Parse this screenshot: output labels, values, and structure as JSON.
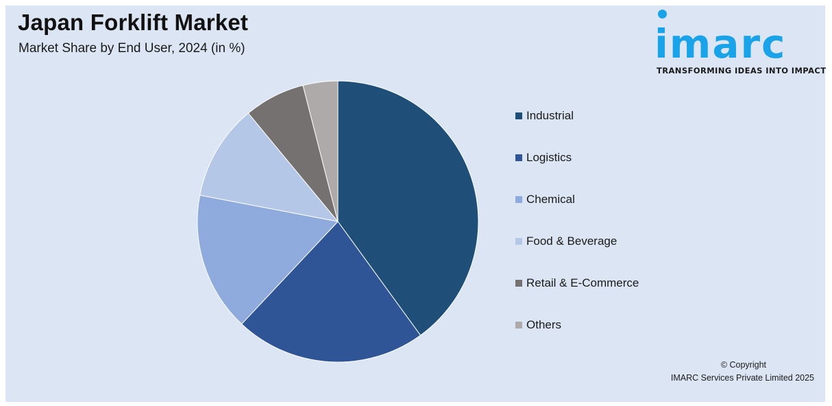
{
  "header": {
    "title": "Japan Forklift Market",
    "subtitle": "Market Share by End User, 2024 (in %)"
  },
  "logo": {
    "name": "imarc",
    "tagline": "TRANSFORMING IDEAS INTO IMPACT",
    "color": "#1aa3e8"
  },
  "chart_data": {
    "type": "pie",
    "title": "Japan Forklift Market",
    "subtitle": "Market Share by End User, 2024 (in %)",
    "legend_position": "right",
    "slices": [
      {
        "label": "Industrial",
        "value": 40,
        "color": "#1f4e79"
      },
      {
        "label": "Logistics",
        "value": 22,
        "color": "#2f5597"
      },
      {
        "label": "Chemical",
        "value": 16,
        "color": "#8faadc"
      },
      {
        "label": "Food & Beverage",
        "value": 11,
        "color": "#b4c7e7"
      },
      {
        "label": "Retail & E-Commerce",
        "value": 7,
        "color": "#767171"
      },
      {
        "label": "Others",
        "value": 4,
        "color": "#aeaaaa"
      }
    ]
  },
  "footer": {
    "copyright": "© Copyright",
    "company": "IMARC Services Private Limited 2025"
  }
}
